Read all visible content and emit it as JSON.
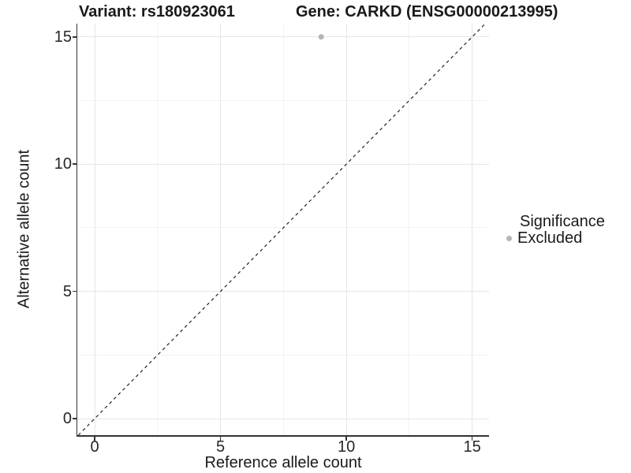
{
  "title": {
    "variant": "Variant: rs180923061",
    "gene": "Gene: CARKD (ENSG00000213995)"
  },
  "axes": {
    "x_label": "Reference allele count",
    "y_label": "Alternative allele count"
  },
  "legend": {
    "title": "Significance",
    "entries": [
      {
        "label": "Excluded",
        "color": "#b5b5b5"
      }
    ]
  },
  "colors": {
    "background": "#ffffff",
    "text": "#1a1a1a",
    "axis_line": "#333333",
    "grid_major": "#e6e6e6",
    "grid_minor": "#f2f2f2",
    "point": "#b5b5b5",
    "reference_line": "#222222"
  },
  "chart_data": {
    "type": "scatter",
    "title": "Variant: rs180923061 — Gene: CARKD (ENSG00000213995)",
    "xlabel": "Reference allele count",
    "ylabel": "Alternative allele count",
    "xlim": [
      -0.69,
      15.67
    ],
    "ylim": [
      -0.65,
      15.52
    ],
    "x_ticks": [
      0,
      5,
      10,
      15
    ],
    "y_ticks": [
      0,
      5,
      10,
      15
    ],
    "x_minor_ticks": [
      2.5,
      7.5,
      12.5
    ],
    "y_minor_ticks": [
      2.5,
      7.5,
      12.5
    ],
    "grid": "major and minor, light gray on white",
    "legend_position": "right",
    "reference_line": {
      "type": "identity y=x",
      "style": "dashed"
    },
    "series": [
      {
        "name": "Excluded",
        "color": "#b5b5b5",
        "point_radius": 3.5,
        "points": [
          {
            "x": 9,
            "y": 15
          }
        ]
      }
    ]
  }
}
